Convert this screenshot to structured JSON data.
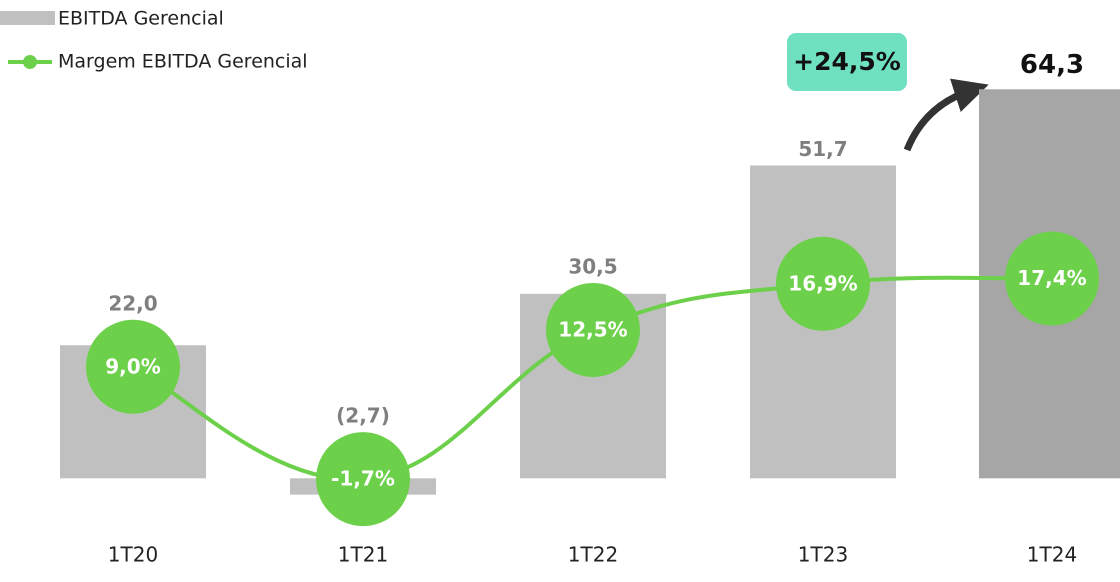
{
  "chart_data": {
    "type": "bar_line",
    "categories": [
      "1T20",
      "1T21",
      "1T22",
      "1T23",
      "1T24"
    ],
    "series": [
      {
        "name": "EBITDA Gerencial",
        "color": "#c0c0c0",
        "colors": [
          "#c0c0c0",
          "#c0c0c0",
          "#c0c0c0",
          "#c0c0c0",
          "#a6a6a6"
        ],
        "values": [
          22.0,
          -2.7,
          30.5,
          51.7,
          64.3
        ],
        "value_labels": [
          "22,0",
          "(2,7)",
          "30,5",
          "51,7",
          "64,3"
        ]
      },
      {
        "name": "Margem EBITDA Gerencial",
        "color": "#6dd04a",
        "axis": "y2",
        "values": [
          9.0,
          -1.7,
          12.5,
          16.9,
          17.4
        ],
        "value_labels": [
          "9,0%",
          "-1,7%",
          "12,5%",
          "16,9%",
          "17,4%"
        ]
      }
    ],
    "ylim": [
      -13.5,
      66
    ],
    "y2lim": [
      -9.4,
      36.4
    ],
    "annotation": "+24,5%",
    "legend": "top-left"
  }
}
